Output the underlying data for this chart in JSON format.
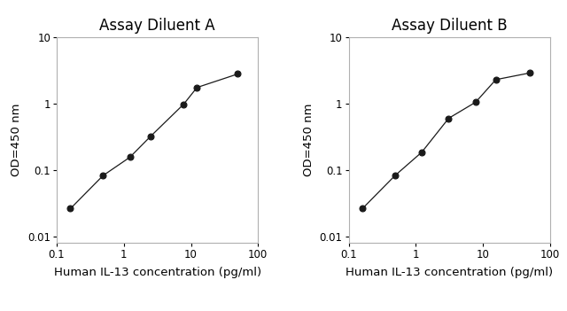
{
  "panel_A_title": "Assay Diluent A",
  "panel_B_title": "Assay Diluent B",
  "xlabel": "Human IL-13 concentration (pg/ml)",
  "ylabel": "OD=450 nm",
  "panel_A_x": [
    0.16,
    0.49,
    1.23,
    2.5,
    7.8,
    12.3,
    50
  ],
  "panel_A_y": [
    0.026,
    0.082,
    0.155,
    0.32,
    0.98,
    1.75,
    2.8
  ],
  "panel_B_x": [
    0.16,
    0.49,
    1.23,
    3.09,
    7.8,
    15.6,
    50
  ],
  "panel_B_y": [
    0.026,
    0.082,
    0.185,
    0.6,
    1.05,
    2.3,
    2.9
  ],
  "xlim": [
    0.1,
    100
  ],
  "ylim": [
    0.008,
    10
  ],
  "xticks": [
    0.1,
    1,
    10,
    100
  ],
  "yticks": [
    0.01,
    0.1,
    1,
    10
  ],
  "xtick_labels": [
    "0.1",
    "1",
    "10",
    "100"
  ],
  "ytick_labels": [
    "0.01",
    "0.1",
    "1",
    "10"
  ],
  "line_color": "#1a1a1a",
  "marker": "o",
  "marker_size": 5,
  "marker_facecolor": "#1a1a1a",
  "background_color": "#ffffff",
  "spine_color": "#b0b0b0",
  "title_fontsize": 12,
  "label_fontsize": 9.5,
  "tick_fontsize": 8.5
}
